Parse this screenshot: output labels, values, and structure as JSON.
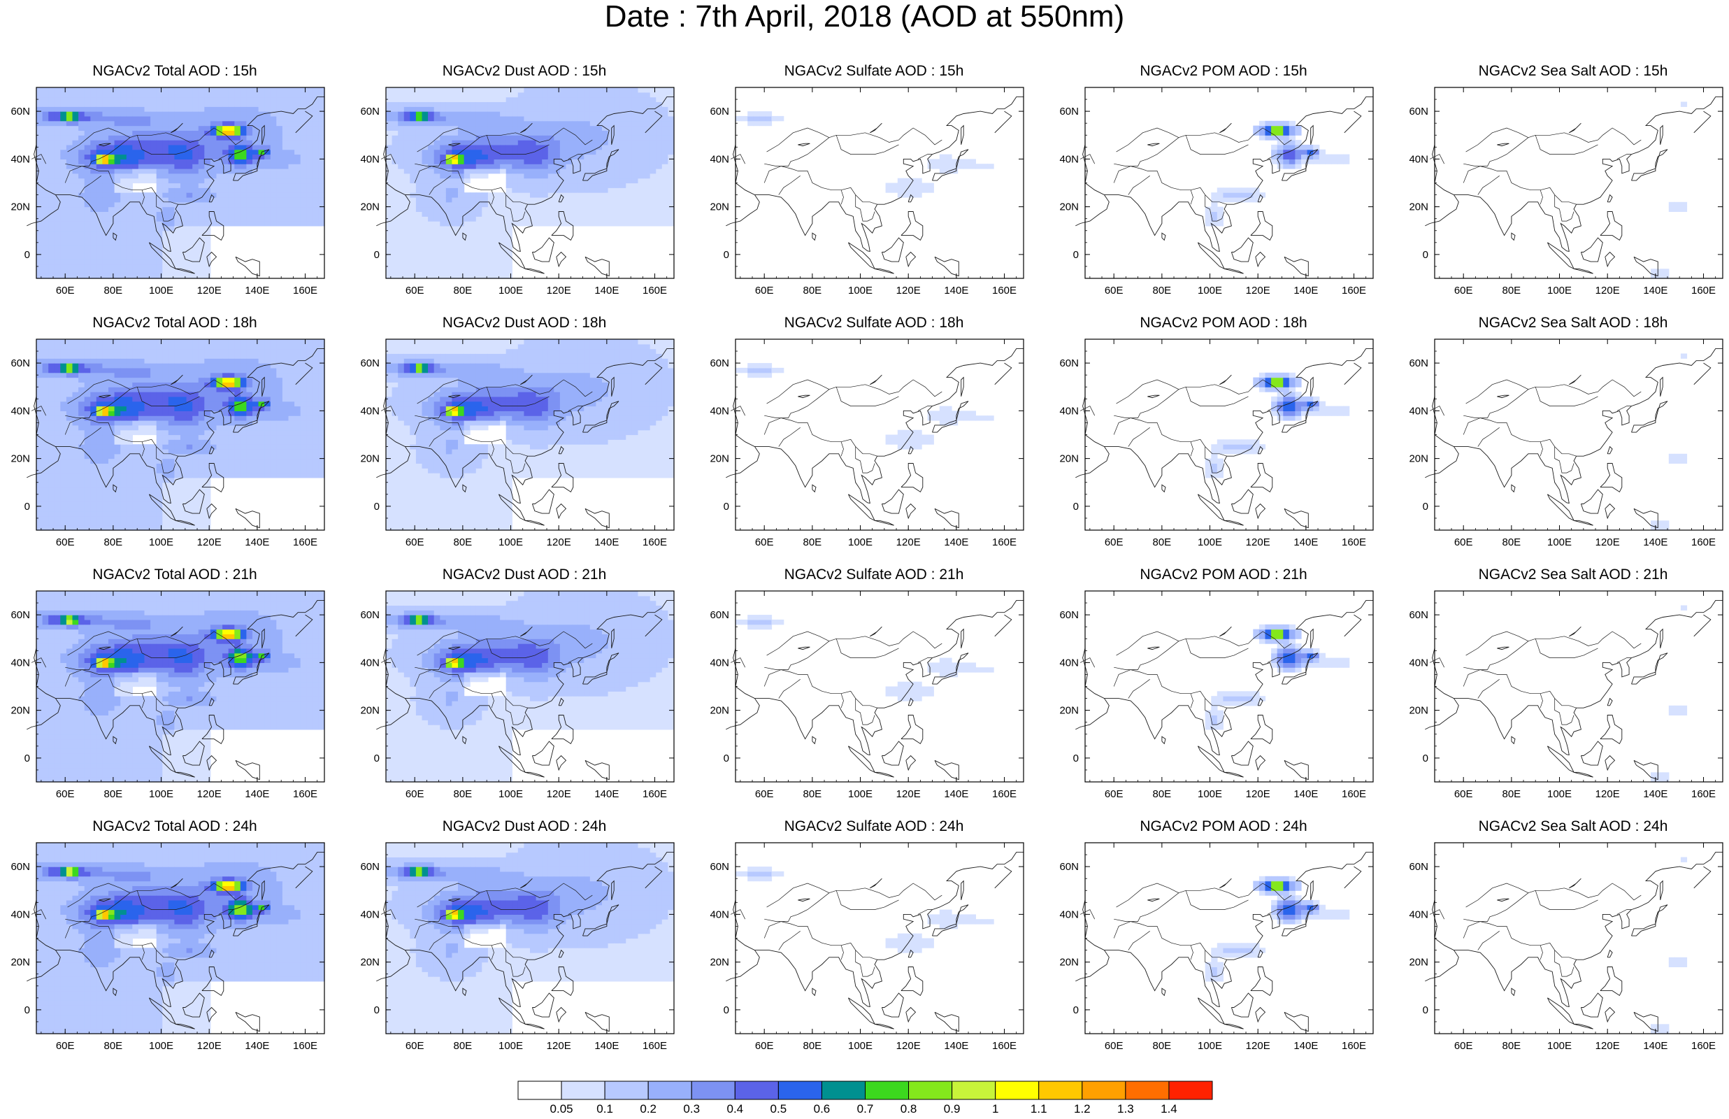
{
  "figure": {
    "title": "Date : 7th April, 2018 (AOD at 550nm)"
  },
  "axes": {
    "lon_ticks": [
      "60E",
      "80E",
      "100E",
      "120E",
      "140E",
      "160E"
    ],
    "lon_values": [
      60,
      80,
      100,
      120,
      140,
      160
    ],
    "lat_ticks": [
      "60N",
      "40N",
      "20N",
      "0"
    ],
    "lat_values": [
      60,
      40,
      20,
      0
    ],
    "lon_range": [
      48,
      168
    ],
    "lat_range": [
      -10,
      70
    ]
  },
  "panels": [
    [
      {
        "title": "NGACv2 Total AOD : 15h",
        "variable": "total"
      },
      {
        "title": "NGACv2 Dust AOD : 15h",
        "variable": "dust"
      },
      {
        "title": "NGACv2 Sulfate AOD : 15h",
        "variable": "sulfate"
      },
      {
        "title": "NGACv2 POM AOD : 15h",
        "variable": "pom"
      },
      {
        "title": "NGACv2 Sea Salt AOD : 15h",
        "variable": "seasalt"
      }
    ],
    [
      {
        "title": "NGACv2 Total AOD : 18h",
        "variable": "total"
      },
      {
        "title": "NGACv2 Dust AOD : 18h",
        "variable": "dust"
      },
      {
        "title": "NGACv2 Sulfate AOD : 18h",
        "variable": "sulfate"
      },
      {
        "title": "NGACv2 POM AOD : 18h",
        "variable": "pom"
      },
      {
        "title": "NGACv2 Sea Salt AOD : 18h",
        "variable": "seasalt"
      }
    ],
    [
      {
        "title": "NGACv2 Total AOD : 21h",
        "variable": "total"
      },
      {
        "title": "NGACv2 Dust AOD : 21h",
        "variable": "dust"
      },
      {
        "title": "NGACv2 Sulfate AOD : 21h",
        "variable": "sulfate"
      },
      {
        "title": "NGACv2 POM AOD : 21h",
        "variable": "pom"
      },
      {
        "title": "NGACv2 Sea Salt AOD : 21h",
        "variable": "seasalt"
      }
    ],
    [
      {
        "title": "NGACv2 Total AOD : 24h",
        "variable": "total"
      },
      {
        "title": "NGACv2 Dust AOD : 24h",
        "variable": "dust"
      },
      {
        "title": "NGACv2 Sulfate AOD : 24h",
        "variable": "sulfate"
      },
      {
        "title": "NGACv2 POM AOD : 24h",
        "variable": "pom"
      },
      {
        "title": "NGACv2 Sea Salt  AOD : 24h",
        "variable": "seasalt"
      }
    ]
  ],
  "colorbar": {
    "labels": [
      "0.05",
      "0.1",
      "0.2",
      "0.3",
      "0.4",
      "0.5",
      "0.6",
      "0.7",
      "0.8",
      "0.9",
      "1",
      "1.1",
      "1.2",
      "1.3",
      "1.4"
    ],
    "colors": [
      "#ffffff",
      "#d6e1ff",
      "#b7c9ff",
      "#98b0fb",
      "#7d92f3",
      "#5b63e8",
      "#2a64ec",
      "#009090",
      "#3cd81e",
      "#84e81c",
      "#c8f43a",
      "#ffff00",
      "#ffc800",
      "#ffa000",
      "#ff6e00",
      "#ff2200"
    ]
  },
  "map_colors": {
    "coast": "#222222",
    "low": "#e3eaff",
    "light": "#c6d5ff",
    "mid": "#9fb5fb",
    "strong": "#7f8ff0",
    "deep": "#6070e6"
  }
}
